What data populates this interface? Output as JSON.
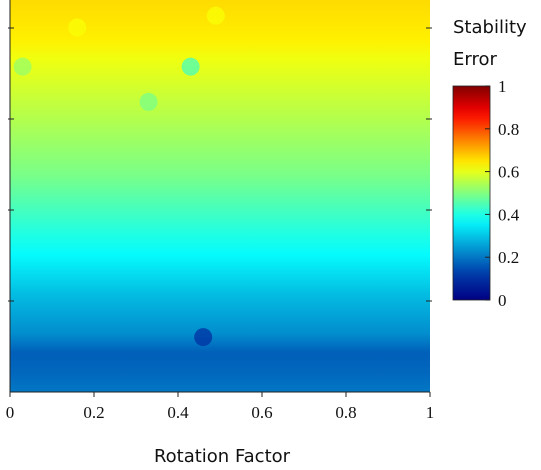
{
  "chart_data": {
    "type": "heatmap",
    "title": "",
    "xlabel": "Rotation Factor",
    "ylabel": "",
    "xlim": [
      0,
      1
    ],
    "x_ticks": [
      "0",
      "0.2",
      "0.4",
      "0.6",
      "0.8",
      "1"
    ],
    "y_ticks": [
      "",
      "",
      "",
      ""
    ],
    "colorbar": {
      "title_lines": [
        "Stability",
        "Error"
      ],
      "range": [
        0,
        1
      ],
      "ticks": [
        "0",
        "0.2",
        "0.4",
        "0.6",
        "0.8",
        "1"
      ],
      "colormap": "jet"
    },
    "row_profile": {
      "row_fraction_from_top": [
        0.0,
        0.05,
        0.1,
        0.15,
        0.2,
        0.25,
        0.3,
        0.35,
        0.4,
        0.45,
        0.5,
        0.55,
        0.6,
        0.65,
        0.7,
        0.75,
        0.8,
        0.85,
        0.9,
        0.95,
        1.0
      ],
      "value": [
        0.66,
        0.65,
        0.64,
        0.61,
        0.59,
        0.57,
        0.55,
        0.53,
        0.51,
        0.49,
        0.46,
        0.43,
        0.4,
        0.37,
        0.33,
        0.29,
        0.26,
        0.23,
        0.17,
        0.18,
        0.2
      ]
    },
    "notable_points": [
      {
        "x": 0.03,
        "y_frac_from_top": 0.17,
        "value": 0.52
      },
      {
        "x": 0.16,
        "y_frac_from_top": 0.07,
        "value": 0.62
      },
      {
        "x": 0.33,
        "y_frac_from_top": 0.26,
        "value": 0.49
      },
      {
        "x": 0.43,
        "y_frac_from_top": 0.17,
        "value": 0.44
      },
      {
        "x": 0.49,
        "y_frac_from_top": 0.04,
        "value": 0.62
      },
      {
        "x": 0.46,
        "y_frac_from_top": 0.86,
        "value": 0.1
      }
    ]
  }
}
